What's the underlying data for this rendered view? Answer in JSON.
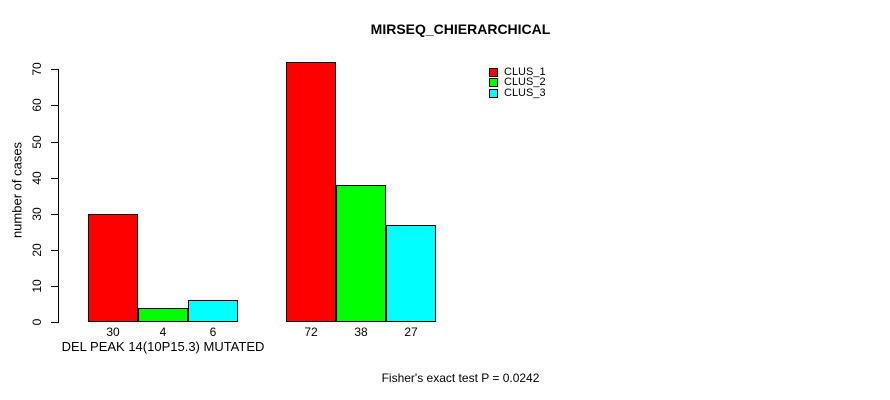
{
  "chart_data": {
    "type": "bar",
    "title": "MIRSEQ_CHIERARCHICAL",
    "ylabel": "number of cases",
    "ylim": [
      0,
      70
    ],
    "yticks": [
      0,
      10,
      20,
      30,
      40,
      50,
      60,
      70
    ],
    "grid": false,
    "background_color": "#ffffff",
    "bar_border_color": "#000000",
    "legend_position": "top-right",
    "categories": [
      "DEL PEAK 14(10P15.3) MUTATED",
      ""
    ],
    "series": [
      {
        "name": "CLUS_1",
        "color": "#ff0000",
        "values": [
          30,
          72
        ]
      },
      {
        "name": "CLUS_2",
        "color": "#00ff00",
        "values": [
          4,
          38
        ]
      },
      {
        "name": "CLUS_3",
        "color": "#00ffff",
        "values": [
          6,
          27
        ]
      }
    ],
    "annotation": "Fisher's exact test P = 0.0242"
  }
}
